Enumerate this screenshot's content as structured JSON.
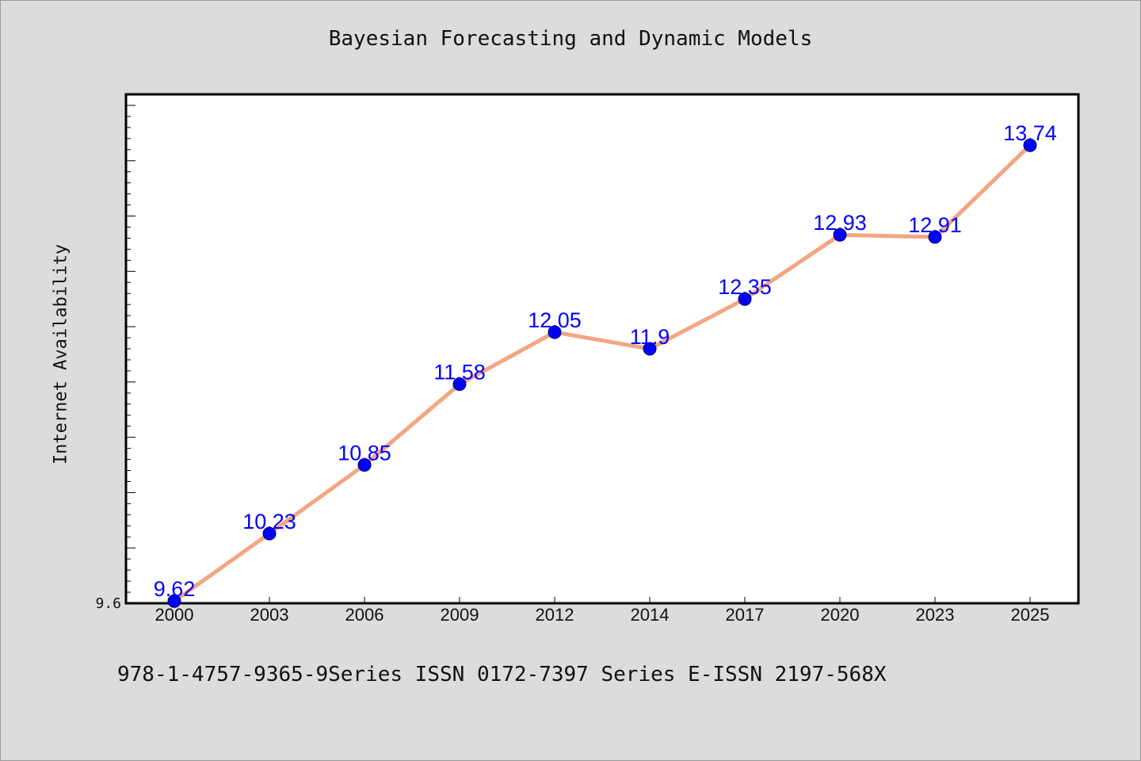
{
  "chart_data": {
    "type": "line",
    "title": "Bayesian Forecasting and Dynamic Models",
    "xlabel": "",
    "ylabel": "Internet Availability",
    "categories": [
      "2000",
      "2003",
      "2006",
      "2009",
      "2012",
      "2014",
      "2017",
      "2020",
      "2023",
      "2025"
    ],
    "series": [
      {
        "values": [
          9.62,
          10.23,
          10.85,
          11.58,
          12.05,
          11.9,
          12.35,
          12.93,
          12.91,
          13.74
        ]
      }
    ],
    "data_labels": [
      "9.62",
      "10.23",
      "10.85",
      "11.58",
      "12.05",
      "11.9",
      "12.35",
      "12.93",
      "12.91",
      "13.74"
    ],
    "ytick_labels": [
      "9.6"
    ],
    "ylim": [
      9.6,
      14.2
    ],
    "grid": false,
    "legend": "none",
    "colors": {
      "line": "#f4a582",
      "marker": "#0000ff",
      "data_label": "#0000ff",
      "plot_background": "#ffffff",
      "figure_background": "#dcdcdc"
    }
  },
  "footer": {
    "text": "978-1-4757-9365-9Series ISSN 0172-7397 Series E-ISSN 2197-568X"
  }
}
